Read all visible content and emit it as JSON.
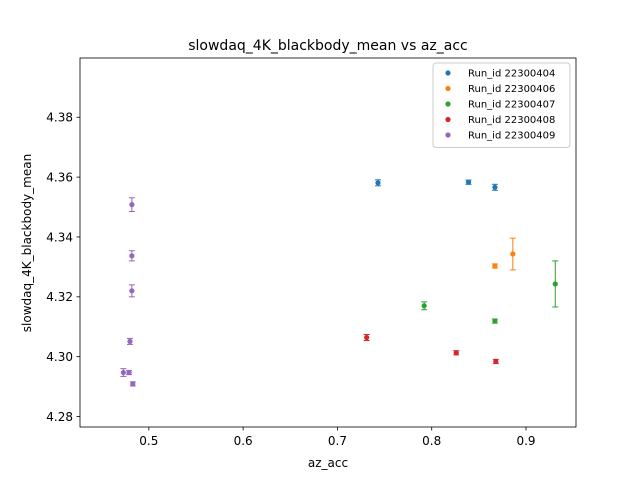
{
  "chart_data": {
    "type": "scatter",
    "title": "slowdaq_4K_blackbody_mean vs az_acc",
    "xlabel": "az_acc",
    "ylabel": "slowdaq_4K_blackbody_mean",
    "xlim": [
      0.427,
      0.953
    ],
    "ylim": [
      4.2765,
      4.3998
    ],
    "xticks": [
      0.5,
      0.6,
      0.7,
      0.8,
      0.9
    ],
    "xtick_labels": [
      "0.5",
      "0.6",
      "0.7",
      "0.8",
      "0.9"
    ],
    "yticks": [
      4.28,
      4.3,
      4.32,
      4.34,
      4.36,
      4.38
    ],
    "ytick_labels": [
      "4.28",
      "4.30",
      "4.32",
      "4.34",
      "4.36",
      "4.38"
    ],
    "grid": false,
    "legend_position": "top-right",
    "error_bars": true,
    "series": [
      {
        "name": "Run_id 22300404",
        "color": "#1f77b4",
        "points": [
          {
            "x": 0.743,
            "y": 4.3581,
            "err": 0.001
          },
          {
            "x": 0.839,
            "y": 4.3583,
            "err": 0.0007
          },
          {
            "x": 0.867,
            "y": 4.3566,
            "err": 0.001
          }
        ]
      },
      {
        "name": "Run_id 22300406",
        "color": "#ff7f0e",
        "points": [
          {
            "x": 0.867,
            "y": 4.3303,
            "err": 0.0007
          },
          {
            "x": 0.886,
            "y": 4.3343,
            "err": 0.0053
          }
        ]
      },
      {
        "name": "Run_id 22300407",
        "color": "#2ca02c",
        "points": [
          {
            "x": 0.792,
            "y": 4.317,
            "err": 0.0013
          },
          {
            "x": 0.867,
            "y": 4.3119,
            "err": 0.0007
          },
          {
            "x": 0.931,
            "y": 4.3243,
            "err": 0.0077
          }
        ]
      },
      {
        "name": "Run_id 22300408",
        "color": "#d62728",
        "points": [
          {
            "x": 0.731,
            "y": 4.3064,
            "err": 0.001
          },
          {
            "x": 0.826,
            "y": 4.3013,
            "err": 0.0007
          },
          {
            "x": 0.868,
            "y": 4.2984,
            "err": 0.0007
          }
        ]
      },
      {
        "name": "Run_id 22300409",
        "color": "#9467bd",
        "points": [
          {
            "x": 0.482,
            "y": 4.3508,
            "err": 0.0023
          },
          {
            "x": 0.482,
            "y": 4.3337,
            "err": 0.0017
          },
          {
            "x": 0.482,
            "y": 4.322,
            "err": 0.002
          },
          {
            "x": 0.48,
            "y": 4.3051,
            "err": 0.001
          },
          {
            "x": 0.473,
            "y": 4.2947,
            "err": 0.0013
          },
          {
            "x": 0.479,
            "y": 4.2947,
            "err": 0.0007
          },
          {
            "x": 0.483,
            "y": 4.2909,
            "err": 0.0007
          }
        ]
      }
    ]
  }
}
